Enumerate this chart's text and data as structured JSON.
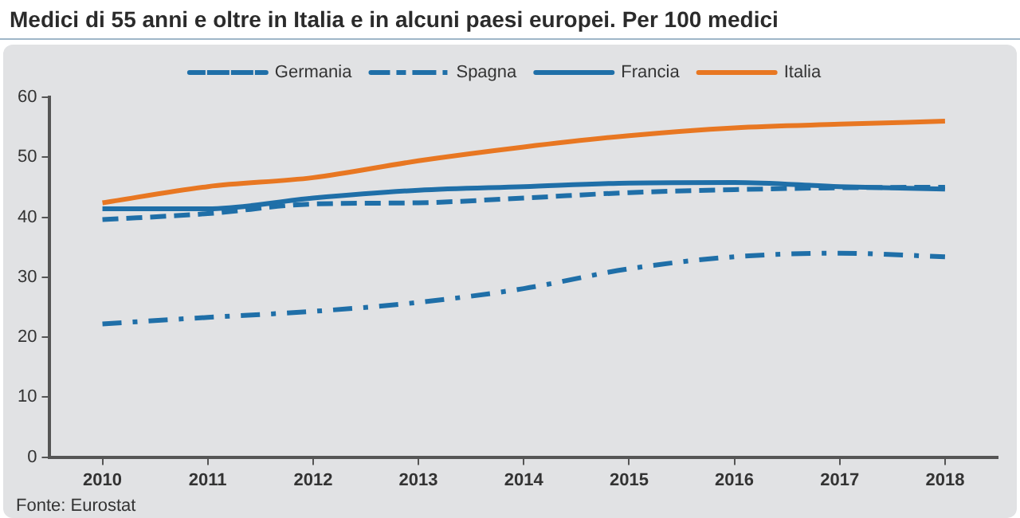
{
  "chart_data": {
    "type": "line",
    "title": "Medici di 55 anni e oltre in Italia e in alcuni paesi europei. Per 100 medici",
    "categories": [
      "2010",
      "2011",
      "2012",
      "2013",
      "2014",
      "2015",
      "2016",
      "2017",
      "2018"
    ],
    "series": [
      {
        "name": "Germania",
        "color": "#1f6fa8",
        "line_style": "dashed",
        "values": [
          39.6,
          40.6,
          42.2,
          42.4,
          43.2,
          44.1,
          44.6,
          44.9,
          45.0
        ]
      },
      {
        "name": "Spagna",
        "color": "#1f6fa8",
        "line_style": "dashdot",
        "values": [
          22.2,
          23.3,
          24.3,
          25.8,
          28.1,
          31.4,
          33.4,
          34.0,
          33.4
        ]
      },
      {
        "name": "Francia",
        "color": "#1f6fa8",
        "line_style": "solid",
        "values": [
          41.4,
          41.4,
          43.2,
          44.5,
          45.1,
          45.7,
          45.8,
          45.1,
          44.7
        ]
      },
      {
        "name": "Italia",
        "color": "#e87722",
        "line_style": "solid",
        "values": [
          42.4,
          45.1,
          46.6,
          49.4,
          51.7,
          53.6,
          54.9,
          55.5,
          56.0
        ]
      }
    ],
    "ylim": [
      0,
      60
    ],
    "yticks": [
      0,
      10,
      20,
      30,
      40,
      50,
      60
    ],
    "grid": false,
    "legend": "top",
    "marker": "none",
    "annotations": [
      "Fonte: Eurostat"
    ]
  }
}
